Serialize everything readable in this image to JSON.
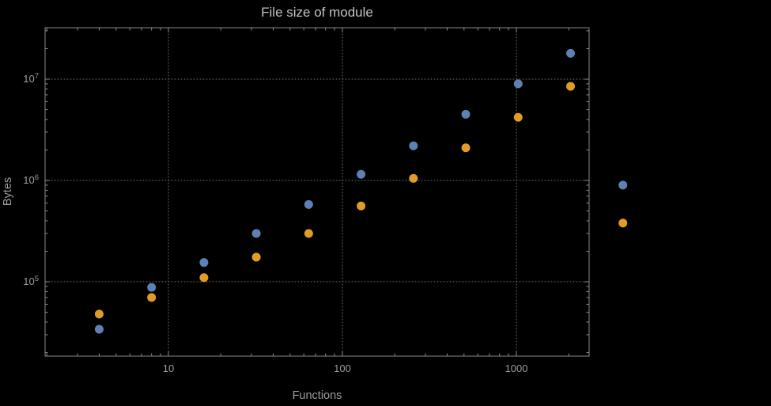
{
  "style": {
    "background": "#000000",
    "frame_color": "#8a8a8a",
    "grid_color": "#6f6f6f",
    "text_color": "#9b9b9b",
    "title_color": "#c2c2c2"
  },
  "chart_data": {
    "type": "scatter",
    "title": "File size of module",
    "xlabel": "Functions",
    "ylabel": "Bytes",
    "x_scale": "log",
    "y_scale": "log",
    "grid": "dotted lines at decade ticks",
    "legend": false,
    "x_ticks": [
      {
        "value": 10,
        "label": "10"
      },
      {
        "value": 100,
        "label": "100"
      },
      {
        "value": 1000,
        "label": "1000"
      }
    ],
    "y_ticks": [
      {
        "value": 100000,
        "label": "10^5",
        "mantissa": "10",
        "exponent": "5"
      },
      {
        "value": 1000000,
        "label": "10^6",
        "mantissa": "10",
        "exponent": "6"
      },
      {
        "value": 10000000,
        "label": "10^7",
        "mantissa": "10",
        "exponent": "7"
      }
    ],
    "xlog_range": [
      0.291,
      3.418
    ],
    "ylog_range": [
      4.266,
      7.508
    ],
    "series": [
      {
        "name": "series-blue",
        "color": "#5e81b5",
        "points": [
          [
            4,
            34000
          ],
          [
            8,
            88000
          ],
          [
            16,
            155000
          ],
          [
            32,
            300000
          ],
          [
            64,
            580000
          ],
          [
            128,
            1150000
          ],
          [
            256,
            2200000
          ],
          [
            512,
            4500000
          ],
          [
            1024,
            9000000
          ],
          [
            2048,
            18000000
          ],
          [
            4096,
            900000
          ]
        ]
      },
      {
        "name": "series-orange",
        "color": "#e09c24",
        "points": [
          [
            4,
            48000
          ],
          [
            8,
            70000
          ],
          [
            16,
            110000
          ],
          [
            32,
            175000
          ],
          [
            64,
            300000
          ],
          [
            128,
            560000
          ],
          [
            256,
            1050000
          ],
          [
            512,
            2100000
          ],
          [
            1024,
            4200000
          ],
          [
            2048,
            8500000
          ],
          [
            4096,
            380000
          ]
        ]
      }
    ]
  }
}
